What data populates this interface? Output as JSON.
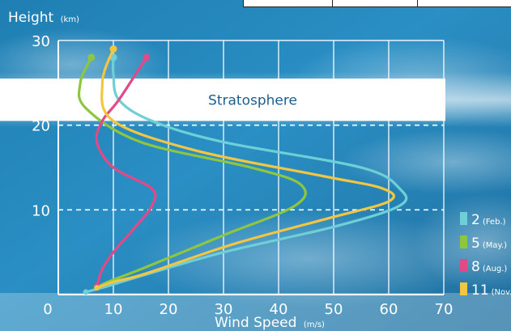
{
  "chart_data": {
    "type": "line",
    "title": "",
    "ylabel": "Height",
    "ylabel_unit": "(km)",
    "xlabel": "Wind Speed",
    "xlabel_unit": "(m/s)",
    "xlim": [
      0,
      70
    ],
    "ylim": [
      0,
      30
    ],
    "x_ticks": [
      0,
      10,
      20,
      30,
      40,
      50,
      60,
      70
    ],
    "y_ticks": [
      10,
      20,
      30
    ],
    "grid": true,
    "annotation": "Stratosphere",
    "stratosphere_band_km": [
      20.5,
      25.5
    ],
    "dashed_reference_lines_km": [
      10,
      20
    ],
    "legend_position": "right",
    "series": [
      {
        "name": "2",
        "legend_sub": "(Feb.)",
        "color": "#6fcfd6",
        "x": [
          5,
          9,
          14,
          30,
          50,
          62,
          62,
          55,
          30,
          17,
          11,
          10,
          10
        ],
        "y": [
          0.3,
          1,
          2,
          5,
          8,
          10.5,
          12.5,
          15,
          18,
          20.5,
          23,
          26,
          28
        ]
      },
      {
        "name": "5",
        "legend_sub": "(May.)",
        "color": "#8fc63f",
        "x": [
          7,
          9,
          15,
          30,
          43,
          44,
          35,
          15,
          5,
          4,
          6
        ],
        "y": [
          0.8,
          1.5,
          3,
          7,
          10.5,
          13,
          15,
          18,
          22,
          25,
          28
        ]
      },
      {
        "name": "8",
        "legend_sub": "(Aug.)",
        "color": "#e04a86",
        "x": [
          7,
          8,
          10,
          14,
          17,
          17,
          10,
          7,
          8,
          11,
          16
        ],
        "y": [
          1,
          3,
          5,
          8,
          10.5,
          12.5,
          15,
          18,
          20.5,
          23,
          28
        ]
      },
      {
        "name": "11",
        "legend_sub": "(Nov.)",
        "color": "#f2c640",
        "x": [
          7,
          10,
          16,
          32,
          49,
          60,
          59,
          48,
          25,
          10,
          8,
          10
        ],
        "y": [
          0.8,
          1.5,
          2.5,
          6,
          9,
          11,
          12.5,
          14,
          17,
          20.5,
          25,
          29
        ]
      }
    ]
  }
}
